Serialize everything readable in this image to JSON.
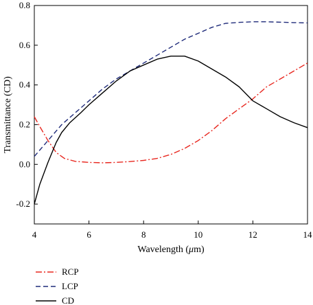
{
  "chart_data": {
    "type": "line",
    "title": "",
    "xlabel_prefix": "Wavelength (",
    "xlabel_unit_italic": "μ",
    "xlabel_suffix": "m)",
    "ylabel": "Transmittance (CD)",
    "xlim": [
      4,
      14
    ],
    "ylim": [
      -0.3,
      0.8
    ],
    "xticks": [
      4,
      6,
      8,
      10,
      12,
      14
    ],
    "xtick_labels": [
      "4",
      "6",
      "8",
      "10",
      "12",
      "14"
    ],
    "yticks": [
      -0.2,
      0.0,
      0.2,
      0.4,
      0.6,
      0.8
    ],
    "ytick_labels": [
      "-0.2",
      "0.0",
      "0.2",
      "0.4",
      "0.6",
      "0.8"
    ],
    "grid": false,
    "legend_position": "below",
    "series": [
      {
        "name": "RCP",
        "color": "#e8271f",
        "dash": "dash-dot",
        "x": [
          4.0,
          4.2,
          4.5,
          4.8,
          5.1,
          5.5,
          6.0,
          6.5,
          7.0,
          7.5,
          8.0,
          8.5,
          9.0,
          9.5,
          10.0,
          10.5,
          11.0,
          11.5,
          12.0,
          12.5,
          13.0,
          13.5,
          14.0
        ],
        "y": [
          0.24,
          0.19,
          0.12,
          0.06,
          0.03,
          0.015,
          0.01,
          0.008,
          0.01,
          0.014,
          0.02,
          0.03,
          0.05,
          0.08,
          0.12,
          0.17,
          0.23,
          0.28,
          0.33,
          0.39,
          0.43,
          0.47,
          0.51
        ]
      },
      {
        "name": "LCP",
        "color": "#1f2b7a",
        "dash": "dashed",
        "x": [
          4.0,
          4.5,
          5.0,
          5.5,
          6.0,
          6.5,
          7.0,
          7.5,
          8.0,
          8.5,
          9.0,
          9.5,
          10.0,
          10.5,
          11.0,
          11.5,
          12.0,
          12.5,
          13.0,
          13.5,
          14.0
        ],
        "y": [
          0.04,
          0.12,
          0.2,
          0.26,
          0.32,
          0.38,
          0.43,
          0.47,
          0.51,
          0.55,
          0.59,
          0.63,
          0.66,
          0.69,
          0.71,
          0.715,
          0.718,
          0.718,
          0.716,
          0.714,
          0.712
        ]
      },
      {
        "name": "CD",
        "color": "#000000",
        "dash": "solid",
        "x": [
          4.0,
          4.2,
          4.5,
          4.8,
          5.0,
          5.3,
          5.7,
          6.0,
          6.5,
          7.0,
          7.5,
          8.0,
          8.5,
          9.0,
          9.5,
          10.0,
          10.5,
          11.0,
          11.5,
          12.0,
          12.5,
          13.0,
          13.5,
          14.0
        ],
        "y": [
          -0.2,
          -0.1,
          0.01,
          0.11,
          0.16,
          0.21,
          0.26,
          0.3,
          0.36,
          0.42,
          0.47,
          0.5,
          0.53,
          0.545,
          0.545,
          0.52,
          0.48,
          0.44,
          0.39,
          0.32,
          0.28,
          0.24,
          0.21,
          0.185
        ]
      }
    ]
  }
}
